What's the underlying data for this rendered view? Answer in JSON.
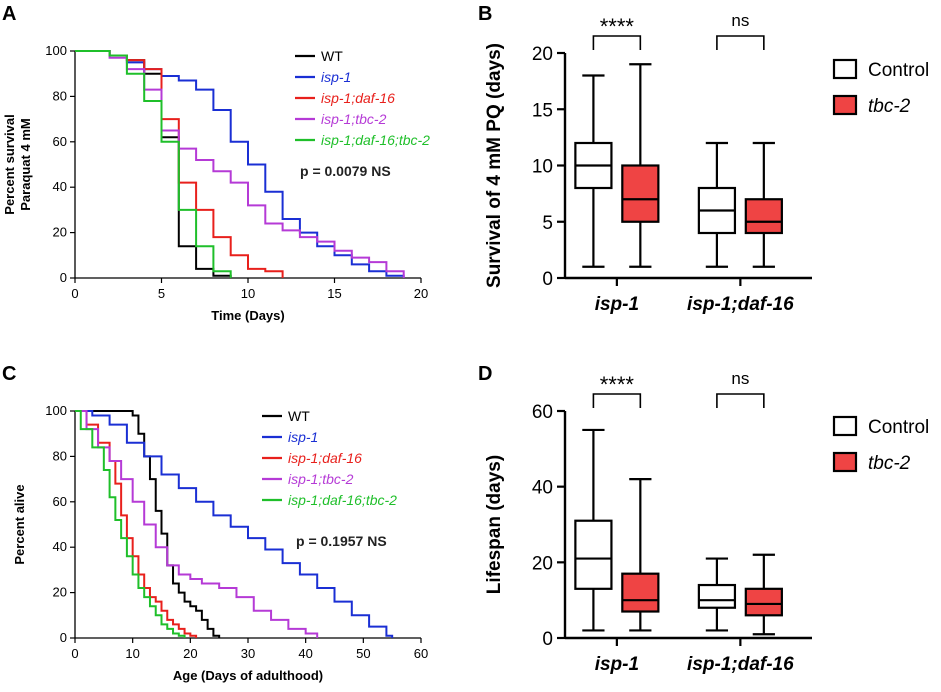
{
  "panels": {
    "A": "A",
    "B": "B",
    "C": "C",
    "D": "D"
  },
  "chart_data": [
    {
      "panel": "A",
      "type": "line",
      "title": "",
      "xlabel": "Time (Days)",
      "ylabel": [
        "Percent survival",
        "Paraquat 4 mM"
      ],
      "xlim": [
        0,
        20
      ],
      "ylim": [
        0,
        100
      ],
      "xticks": [
        "0",
        "5",
        "10",
        "15",
        "20"
      ],
      "yticks": [
        "0",
        "20",
        "40",
        "60",
        "80",
        "100"
      ],
      "annotation": "p = 0.0079 NS",
      "series": [
        {
          "name": "WT",
          "italic": false,
          "color": "#000000",
          "x": [
            0,
            1,
            2,
            3,
            4,
            5,
            6,
            7,
            8,
            9
          ],
          "y": [
            100,
            100,
            98,
            96,
            90,
            62,
            14,
            4,
            1,
            0
          ]
        },
        {
          "name": "isp-1",
          "italic": true,
          "color": "#1a2fd4",
          "x": [
            0,
            1,
            2,
            3,
            4,
            5,
            6,
            7,
            8,
            9,
            10,
            11,
            12,
            13,
            14,
            15,
            16,
            17,
            18,
            19
          ],
          "y": [
            100,
            100,
            98,
            95,
            92,
            89,
            87,
            83,
            74,
            60,
            50,
            38,
            26,
            20,
            14,
            10,
            6,
            3,
            1,
            0
          ]
        },
        {
          "name": "isp-1;daf-16",
          "italic": true,
          "color": "#e8201c",
          "x": [
            0,
            1,
            2,
            3,
            4,
            5,
            6,
            7,
            8,
            9,
            10,
            11,
            12
          ],
          "y": [
            100,
            100,
            98,
            96,
            92,
            70,
            42,
            30,
            18,
            10,
            4,
            3,
            0
          ]
        },
        {
          "name": "isp-1;tbc-2",
          "italic": true,
          "color": "#b53ad6",
          "x": [
            0,
            1,
            2,
            3,
            4,
            5,
            6,
            7,
            8,
            9,
            10,
            11,
            12,
            13,
            14,
            15,
            16,
            17,
            18,
            19
          ],
          "y": [
            100,
            100,
            97,
            92,
            83,
            65,
            57,
            52,
            47,
            42,
            32,
            24,
            21,
            18,
            16,
            12,
            9,
            7,
            3,
            0
          ]
        },
        {
          "name": "isp-1;daf-16;tbc-2",
          "italic": true,
          "color": "#1fbf2a",
          "x": [
            0,
            1,
            2,
            3,
            4,
            5,
            6,
            7,
            8,
            9
          ],
          "y": [
            100,
            100,
            98,
            90,
            78,
            60,
            30,
            14,
            3,
            0
          ]
        }
      ]
    },
    {
      "panel": "B",
      "type": "box",
      "title": "",
      "ylabel": "Survival of 4 mM PQ (days)",
      "ylim": [
        0,
        20
      ],
      "yticks": [
        "0",
        "5",
        "10",
        "15",
        "20"
      ],
      "categories": [
        "isp-1",
        "isp-1;daf-16"
      ],
      "legend": [
        {
          "name": "Control",
          "italic": false,
          "color": "#ffffff"
        },
        {
          "name": "tbc-2",
          "italic": true,
          "color": "#ef4444"
        }
      ],
      "boxes": [
        {
          "category": "isp-1",
          "group": "Control",
          "min": 1,
          "q1": 8,
          "median": 10,
          "q3": 12,
          "max": 18
        },
        {
          "category": "isp-1",
          "group": "tbc-2",
          "min": 1,
          "q1": 5,
          "median": 7,
          "q3": 10,
          "max": 19
        },
        {
          "category": "isp-1;daf-16",
          "group": "Control",
          "min": 1,
          "q1": 4,
          "median": 6,
          "q3": 8,
          "max": 12
        },
        {
          "category": "isp-1;daf-16",
          "group": "tbc-2",
          "min": 1,
          "q1": 4,
          "median": 5,
          "q3": 7,
          "max": 12
        }
      ],
      "significance": [
        "****",
        "ns"
      ]
    },
    {
      "panel": "C",
      "type": "line",
      "title": "",
      "xlabel": "Age (Days of adulthood)",
      "ylabel": "Percent alive",
      "xlim": [
        0,
        60
      ],
      "ylim": [
        0,
        100
      ],
      "xticks": [
        "0",
        "10",
        "20",
        "30",
        "40",
        "50",
        "60"
      ],
      "yticks": [
        "0",
        "20",
        "40",
        "60",
        "80",
        "100"
      ],
      "annotation": "p = 0.1957 NS",
      "series": [
        {
          "name": "WT",
          "italic": false,
          "color": "#000000",
          "x": [
            0,
            5,
            8,
            10,
            11,
            12,
            13,
            14,
            15,
            16,
            17,
            18,
            19,
            20,
            21,
            22,
            23,
            24,
            25
          ],
          "y": [
            100,
            100,
            100,
            98,
            90,
            80,
            70,
            56,
            46,
            32,
            24,
            20,
            16,
            14,
            12,
            8,
            4,
            1,
            0
          ]
        },
        {
          "name": "isp-1",
          "italic": true,
          "color": "#1a2fd4",
          "x": [
            0,
            3,
            6,
            9,
            12,
            15,
            18,
            21,
            24,
            27,
            30,
            33,
            36,
            39,
            42,
            45,
            48,
            51,
            54,
            55
          ],
          "y": [
            100,
            98,
            94,
            86,
            80,
            72,
            66,
            60,
            54,
            49,
            44,
            39,
            33,
            28,
            22,
            16,
            10,
            5,
            1,
            0
          ]
        },
        {
          "name": "isp-1;daf-16",
          "italic": true,
          "color": "#e8201c",
          "x": [
            0,
            2,
            4,
            6,
            7,
            8,
            9,
            10,
            11,
            12,
            13,
            14,
            15,
            16,
            17,
            18,
            19,
            20,
            21
          ],
          "y": [
            100,
            94,
            86,
            78,
            68,
            54,
            44,
            36,
            28,
            22,
            18,
            16,
            12,
            8,
            6,
            4,
            2,
            1,
            0
          ]
        },
        {
          "name": "isp-1;tbc-2",
          "italic": true,
          "color": "#b53ad6",
          "x": [
            0,
            2,
            4,
            6,
            8,
            10,
            12,
            14,
            16,
            18,
            20,
            22,
            25,
            28,
            31,
            34,
            37,
            40,
            42
          ],
          "y": [
            100,
            92,
            84,
            78,
            70,
            60,
            50,
            40,
            32,
            28,
            26,
            24,
            22,
            18,
            12,
            8,
            4,
            2,
            0
          ]
        },
        {
          "name": "isp-1;daf-16;tbc-2",
          "italic": true,
          "color": "#1fbf2a",
          "x": [
            0,
            1,
            3,
            5,
            6,
            7,
            8,
            9,
            10,
            11,
            12,
            13,
            14,
            15,
            16,
            17,
            18,
            19
          ],
          "y": [
            100,
            92,
            84,
            74,
            62,
            52,
            44,
            36,
            28,
            22,
            18,
            14,
            10,
            6,
            4,
            2,
            1,
            0
          ]
        }
      ]
    },
    {
      "panel": "D",
      "type": "box",
      "title": "",
      "ylabel": "Lifespan (days)",
      "ylim": [
        0,
        60
      ],
      "yticks": [
        "0",
        "20",
        "40",
        "60"
      ],
      "categories": [
        "isp-1",
        "isp-1;daf-16"
      ],
      "legend": [
        {
          "name": "Control",
          "italic": false,
          "color": "#ffffff"
        },
        {
          "name": "tbc-2",
          "italic": true,
          "color": "#ef4444"
        }
      ],
      "boxes": [
        {
          "category": "isp-1",
          "group": "Control",
          "min": 2,
          "q1": 13,
          "median": 21,
          "q3": 31,
          "max": 55
        },
        {
          "category": "isp-1",
          "group": "tbc-2",
          "min": 2,
          "q1": 7,
          "median": 10,
          "q3": 17,
          "max": 42
        },
        {
          "category": "isp-1;daf-16",
          "group": "Control",
          "min": 2,
          "q1": 8,
          "median": 10,
          "q3": 14,
          "max": 21
        },
        {
          "category": "isp-1;daf-16",
          "group": "tbc-2",
          "min": 1,
          "q1": 6,
          "median": 9,
          "q3": 13,
          "max": 22
        }
      ],
      "significance": [
        "****",
        "ns"
      ]
    }
  ]
}
